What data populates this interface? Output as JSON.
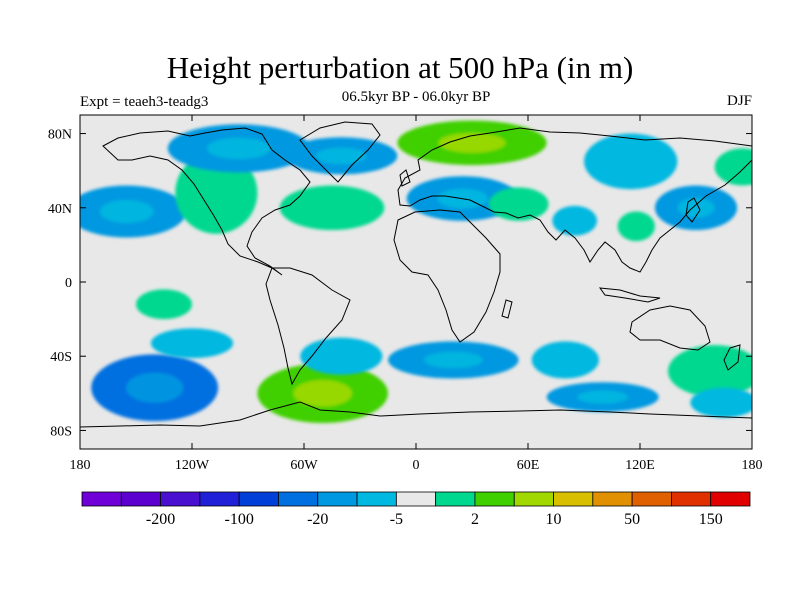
{
  "title": "Height perturbation at 500 hPa (in m)",
  "subtitle": "06.5kyr BP - 06.0kyr BP",
  "left_label": "Expt = teaeh3-teadg3",
  "right_label": "DJF",
  "map": {
    "projection": "cylindrical-equidistant",
    "lon_range": [
      -180,
      180
    ],
    "lat_range": [
      -90,
      90
    ],
    "lon_ticks": [
      {
        "value": -180,
        "label": "180"
      },
      {
        "value": -120,
        "label": "120W"
      },
      {
        "value": -60,
        "label": "60W"
      },
      {
        "value": 0,
        "label": "0"
      },
      {
        "value": 60,
        "label": "60E"
      },
      {
        "value": 120,
        "label": "120E"
      },
      {
        "value": 180,
        "label": "180"
      }
    ],
    "lat_ticks": [
      {
        "value": 80,
        "label": "80N"
      },
      {
        "value": 40,
        "label": "40N"
      },
      {
        "value": 0,
        "label": "0"
      },
      {
        "value": -40,
        "label": "40S"
      },
      {
        "value": -80,
        "label": "80S"
      }
    ],
    "background_color": "#e8e8e8"
  },
  "colorbar": {
    "colors": [
      "#7000d8",
      "#5c00d0",
      "#4a10d0",
      "#2020d8",
      "#0040d8",
      "#0070e0",
      "#0098e0",
      "#00b8e0",
      "#e8e8e8",
      "#00d890",
      "#40d000",
      "#a0d800",
      "#d8c000",
      "#e09000",
      "#e06000",
      "#e03000",
      "#e00000"
    ],
    "tick_labels": [
      "-200",
      "-100",
      "-20",
      "-5",
      "2",
      "10",
      "50",
      "150"
    ],
    "tick_boundary_index": [
      2,
      4,
      6,
      8,
      10,
      12,
      14,
      16
    ]
  },
  "anomaly_fields": [
    {
      "region": "Pacific north",
      "lon": -155,
      "lat": 38,
      "rx": 32,
      "ry": 14,
      "value": -10
    },
    {
      "region": "North Pacific / NW America",
      "lon": -107,
      "lat": 48,
      "rx": 22,
      "ry": 22,
      "value": 5
    },
    {
      "region": "North America",
      "lon": -95,
      "lat": 72,
      "rx": 38,
      "ry": 13,
      "value": -10
    },
    {
      "region": "Canada / Greenland",
      "lon": -40,
      "lat": 68,
      "rx": 30,
      "ry": 10,
      "value": -10
    },
    {
      "region": "North Atlantic",
      "lon": -45,
      "lat": 40,
      "rx": 28,
      "ry": 12,
      "value": 5
    },
    {
      "region": "Arctic Europe",
      "lon": 30,
      "lat": 75,
      "rx": 40,
      "ry": 12,
      "value": 10
    },
    {
      "region": "Europe / Mediterranean",
      "lon": 25,
      "lat": 45,
      "rx": 30,
      "ry": 12,
      "value": -10
    },
    {
      "region": "Central Asia",
      "lon": 55,
      "lat": 42,
      "rx": 16,
      "ry": 9,
      "value": 5
    },
    {
      "region": "Asia south",
      "lon": 85,
      "lat": 33,
      "rx": 12,
      "ry": 8,
      "value": -5
    },
    {
      "region": "East Asia",
      "lon": 118,
      "lat": 30,
      "rx": 10,
      "ry": 8,
      "value": 5
    },
    {
      "region": "Siberia",
      "lon": 115,
      "lat": 65,
      "rx": 25,
      "ry": 15,
      "value": -5
    },
    {
      "region": "Northwest Pacific",
      "lon": 150,
      "lat": 40,
      "rx": 22,
      "ry": 12,
      "value": -10
    },
    {
      "region": "Date line north",
      "lon": 175,
      "lat": 62,
      "rx": 15,
      "ry": 10,
      "value": 5
    },
    {
      "region": "Eastern Pacific tropics",
      "lon": -135,
      "lat": -12,
      "rx": 15,
      "ry": 8,
      "value": 5
    },
    {
      "region": "South Pacific",
      "lon": -140,
      "lat": -57,
      "rx": 34,
      "ry": 18,
      "value": -20
    },
    {
      "region": "South Pacific subtropics",
      "lon": -120,
      "lat": -33,
      "rx": 22,
      "ry": 8,
      "value": -5
    },
    {
      "region": "South America south",
      "lon": -50,
      "lat": -60,
      "rx": 35,
      "ry": 16,
      "value": 10
    },
    {
      "region": "South Atlantic",
      "lon": -40,
      "lat": -40,
      "rx": 22,
      "ry": 10,
      "value": -5
    },
    {
      "region": "South Indian Ocean",
      "lon": 20,
      "lat": -42,
      "rx": 35,
      "ry": 10,
      "value": -10
    },
    {
      "region": "Indian Ocean south",
      "lon": 80,
      "lat": -42,
      "rx": 18,
      "ry": 10,
      "value": -5
    },
    {
      "region": "Southern Ocean",
      "lon": 100,
      "lat": -62,
      "rx": 30,
      "ry": 8,
      "value": -10
    },
    {
      "region": "Tasman / SW Pacific",
      "lon": 160,
      "lat": -48,
      "rx": 25,
      "ry": 14,
      "value": 5
    },
    {
      "region": "Southern Ocean east",
      "lon": 165,
      "lat": -65,
      "rx": 18,
      "ry": 8,
      "value": -5
    }
  ]
}
